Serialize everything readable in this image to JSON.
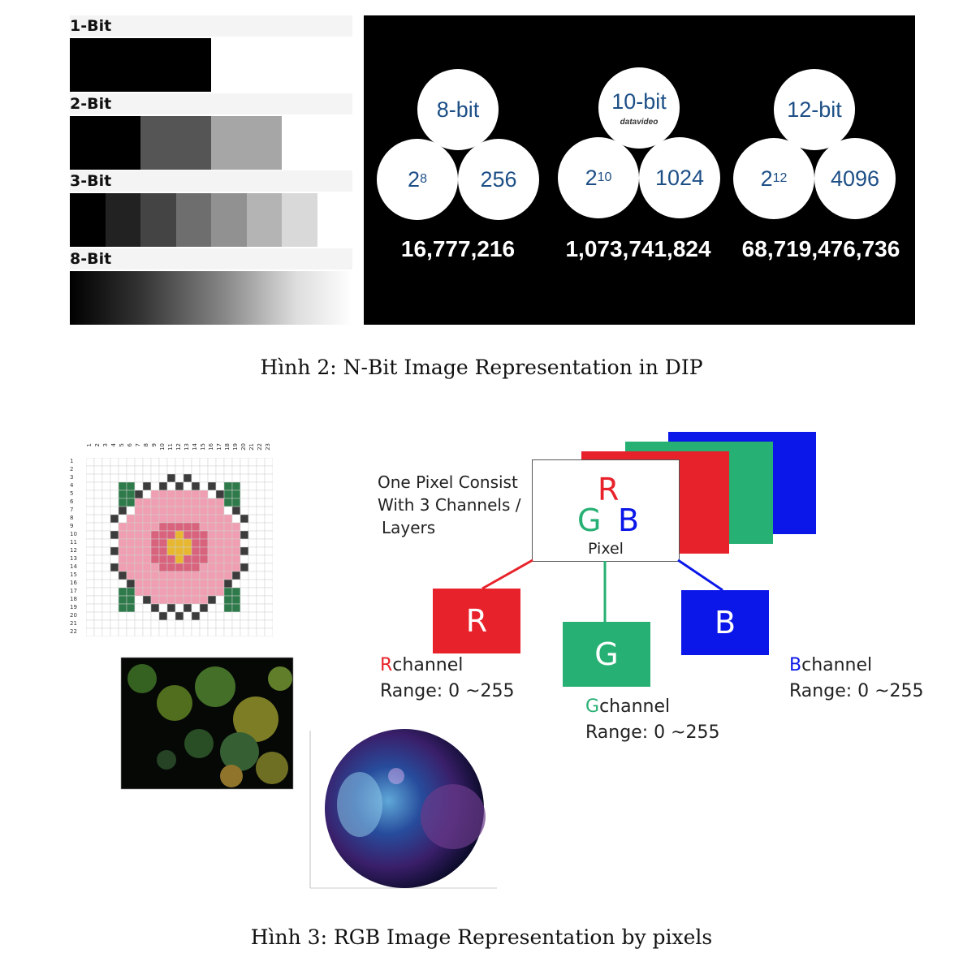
{
  "figure2": {
    "bit_levels": [
      {
        "label": "1-Bit",
        "shades": [
          "#000000",
          "#ffffff"
        ]
      },
      {
        "label": "2-Bit",
        "shades": [
          "#000000",
          "#555555",
          "#a6a6a6",
          "#ffffff"
        ]
      },
      {
        "label": "3-Bit",
        "shades": [
          "#000000",
          "#222222",
          "#444444",
          "#6e6e6e",
          "#919191",
          "#b4b4b4",
          "#d9d9d9",
          "#ffffff"
        ]
      },
      {
        "label": "8-Bit",
        "shades": []
      }
    ],
    "circles": [
      {
        "top": "8-bit",
        "left": "2",
        "left_exp": "8",
        "right": "256",
        "total": "16,777,216"
      },
      {
        "top": "10-bit",
        "left": "2",
        "left_exp": "10",
        "right": "1024",
        "total": "1,073,741,824",
        "logo": "datavideo"
      },
      {
        "top": "12-bit",
        "left": "2",
        "left_exp": "12",
        "right": "4096",
        "total": "68,719,476,736"
      }
    ],
    "caption": "Hình 2: N-Bit Image Representation in DIP"
  },
  "figure3": {
    "pixel_grid_cols": [
      "1",
      "2",
      "3",
      "4",
      "5",
      "6",
      "7",
      "8",
      "9",
      "10",
      "11",
      "12",
      "13",
      "14",
      "15",
      "16",
      "17",
      "18",
      "19",
      "20",
      "21",
      "22",
      "23"
    ],
    "pixel_grid_rows": [
      "1",
      "2",
      "3",
      "4",
      "5",
      "6",
      "7",
      "8",
      "9",
      "10",
      "11",
      "12",
      "13",
      "14",
      "15",
      "16",
      "17",
      "18",
      "19",
      "20",
      "21",
      "22"
    ],
    "intro_text": [
      "One Pixel Consist",
      "With 3 Channels /",
      "Layers"
    ],
    "pixel_box": {
      "r": "R",
      "g": "G",
      "b": "B",
      "label": "Pixel"
    },
    "channels": [
      {
        "letter": "R",
        "name": "channel",
        "range": "Range: 0 ~255",
        "color": "#e8222a"
      },
      {
        "letter": "G",
        "name": "channel",
        "range": "Range: 0 ~255",
        "color": "#27b073"
      },
      {
        "letter": "B",
        "name": "channel",
        "range": "Range: 0 ~255",
        "color": "#0b17e8"
      }
    ],
    "caption": "Hình 3: RGB Image Representation by pixels"
  }
}
